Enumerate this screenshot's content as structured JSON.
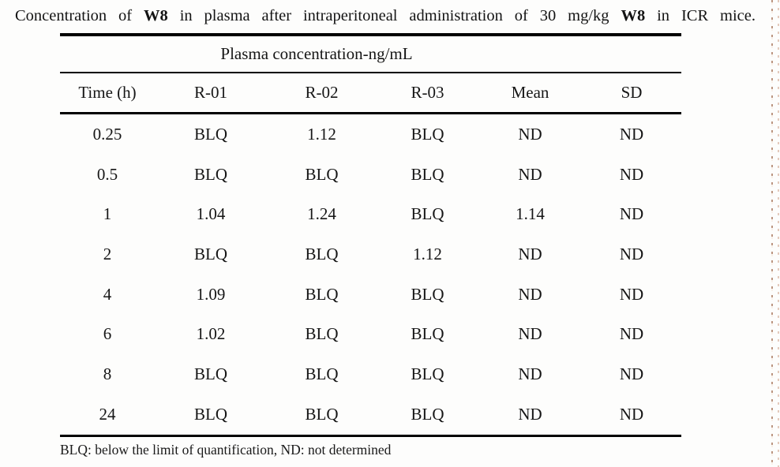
{
  "caption": {
    "part1": "Concentration of ",
    "compound1": "W8",
    "part2": " in plasma after intraperitoneal administration of 30 mg/kg ",
    "compound2": "W8",
    "part3": " in ICR mice."
  },
  "table": {
    "group_header": "Plasma concentration-ng/mL",
    "columns": [
      "Time (h)",
      "R-01",
      "R-02",
      "R-03",
      "Mean",
      "SD"
    ],
    "rows": [
      [
        "0.25",
        "BLQ",
        "1.12",
        "BLQ",
        "ND",
        "ND"
      ],
      [
        "0.5",
        "BLQ",
        "BLQ",
        "BLQ",
        "ND",
        "ND"
      ],
      [
        "1",
        "1.04",
        "1.24",
        "BLQ",
        "1.14",
        "ND"
      ],
      [
        "2",
        "BLQ",
        "BLQ",
        "1.12",
        "ND",
        "ND"
      ],
      [
        "4",
        "1.09",
        "BLQ",
        "BLQ",
        "ND",
        "ND"
      ],
      [
        "6",
        "1.02",
        "BLQ",
        "BLQ",
        "ND",
        "ND"
      ],
      [
        "8",
        "BLQ",
        "BLQ",
        "BLQ",
        "ND",
        "ND"
      ],
      [
        "24",
        "BLQ",
        "BLQ",
        "BLQ",
        "ND",
        "ND"
      ]
    ]
  },
  "footnote": "BLQ: below the limit of quantification, ND: not determined",
  "colors": {
    "page_background": "#fdfdfc",
    "text": "#151515",
    "rule": "#000000",
    "edge_mark": "#995e3f"
  }
}
